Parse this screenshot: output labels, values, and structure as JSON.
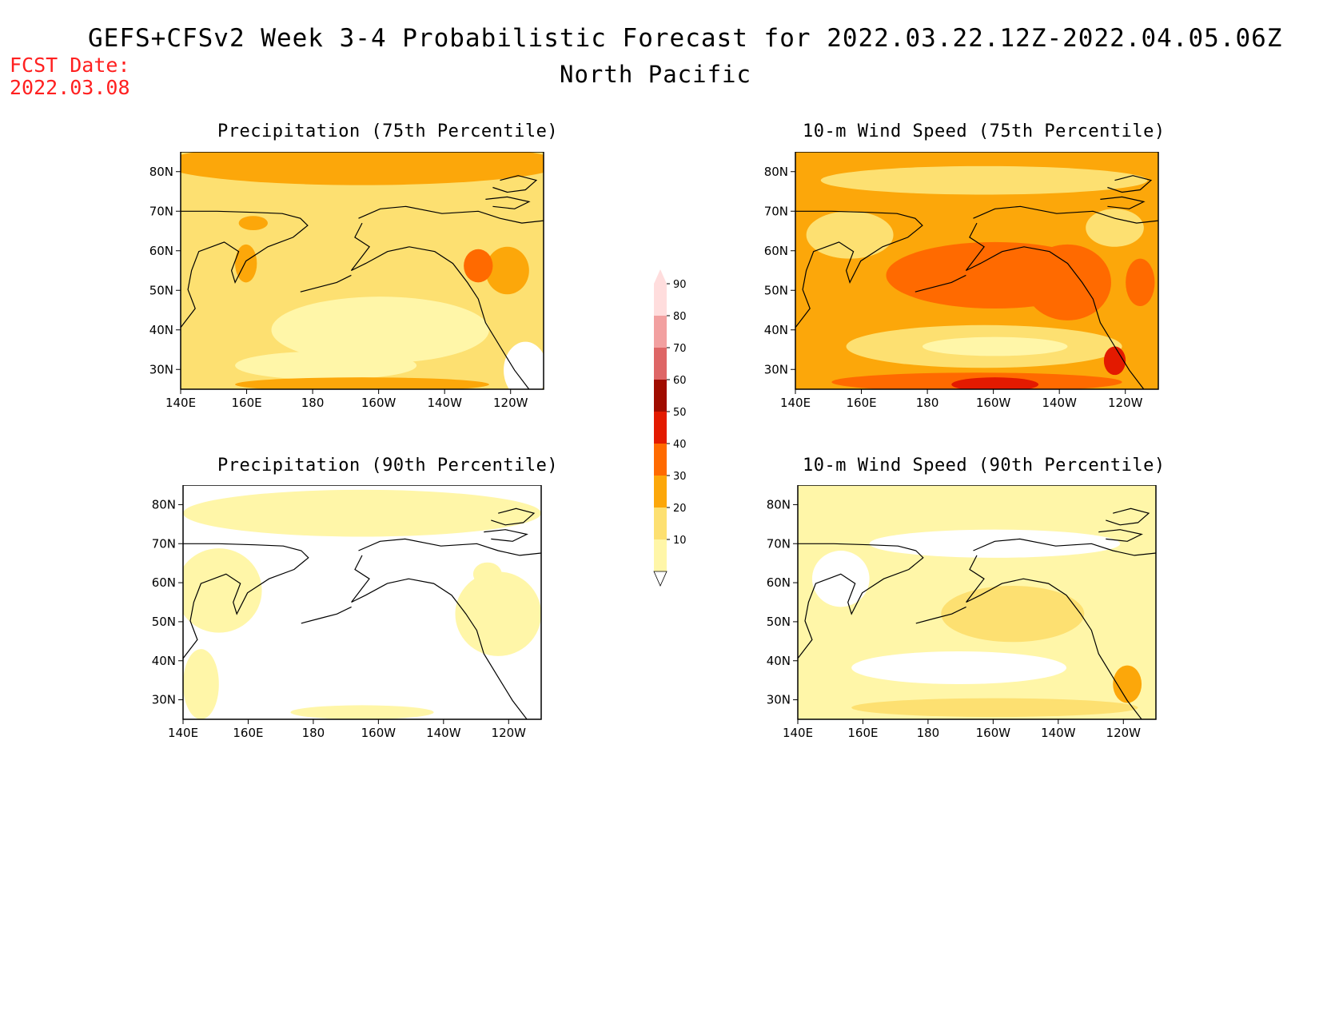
{
  "header": {
    "title": "GEFS+CFSv2 Week 3-4 Probabilistic Forecast for 2022.03.22.12Z-2022.04.05.06Z",
    "subtitle": "North Pacific",
    "fcst_label": "FCST Date:",
    "fcst_date": "2022.03.08"
  },
  "panels": [
    {
      "title": "Precipitation (75th Percentile)",
      "level": "moderate-yellow"
    },
    {
      "title": "10-m Wind Speed (75th Percentile)",
      "level": "orange-red"
    },
    {
      "title": "Precipitation (90th Percentile)",
      "level": "mostly-white"
    },
    {
      "title": "10-m Wind Speed (90th Percentile)",
      "level": "light-yellow"
    }
  ],
  "axes": {
    "lon_ticks": [
      "140E",
      "160E",
      "180",
      "160W",
      "140W",
      "120W"
    ],
    "lat_ticks": [
      "80N",
      "70N",
      "60N",
      "50N",
      "40N",
      "30N"
    ]
  },
  "colorbar": {
    "levels": [
      "10",
      "20",
      "30",
      "40",
      "50",
      "60",
      "70",
      "80",
      "90"
    ],
    "colors": [
      "#fff6a8",
      "#fde071",
      "#fca70a",
      "#ff6a00",
      "#e31a00",
      "#a00c00",
      "#de6666",
      "#f2a0a0",
      "#ffdddd"
    ]
  },
  "chart_data": [
    {
      "type": "heatmap",
      "title": "Precipitation (75th Percentile)",
      "xlabel": "",
      "ylabel": "",
      "x_ticks": [
        "140E",
        "160E",
        "180",
        "160W",
        "140W",
        "120W"
      ],
      "y_ticks": [
        "30N",
        "40N",
        "50N",
        "60N",
        "70N",
        "80N"
      ],
      "color_levels": [
        10,
        20,
        30,
        40,
        50,
        60,
        70,
        80,
        90
      ]
    },
    {
      "type": "heatmap",
      "title": "10-m Wind Speed (75th Percentile)",
      "xlabel": "",
      "ylabel": "",
      "x_ticks": [
        "140E",
        "160E",
        "180",
        "160W",
        "140W",
        "120W"
      ],
      "y_ticks": [
        "30N",
        "40N",
        "50N",
        "60N",
        "70N",
        "80N"
      ],
      "color_levels": [
        10,
        20,
        30,
        40,
        50,
        60,
        70,
        80,
        90
      ]
    },
    {
      "type": "heatmap",
      "title": "Precipitation (90th Percentile)",
      "xlabel": "",
      "ylabel": "",
      "x_ticks": [
        "140E",
        "160E",
        "180",
        "160W",
        "140W",
        "120W"
      ],
      "y_ticks": [
        "30N",
        "40N",
        "50N",
        "60N",
        "70N",
        "80N"
      ],
      "color_levels": [
        10,
        20,
        30,
        40,
        50,
        60,
        70,
        80,
        90
      ]
    },
    {
      "type": "heatmap",
      "title": "10-m Wind Speed (90th Percentile)",
      "xlabel": "",
      "ylabel": "",
      "x_ticks": [
        "140E",
        "160E",
        "180",
        "160W",
        "140W",
        "120W"
      ],
      "y_ticks": [
        "30N",
        "40N",
        "50N",
        "60N",
        "70N",
        "80N"
      ],
      "color_levels": [
        10,
        20,
        30,
        40,
        50,
        60,
        70,
        80,
        90
      ]
    }
  ]
}
